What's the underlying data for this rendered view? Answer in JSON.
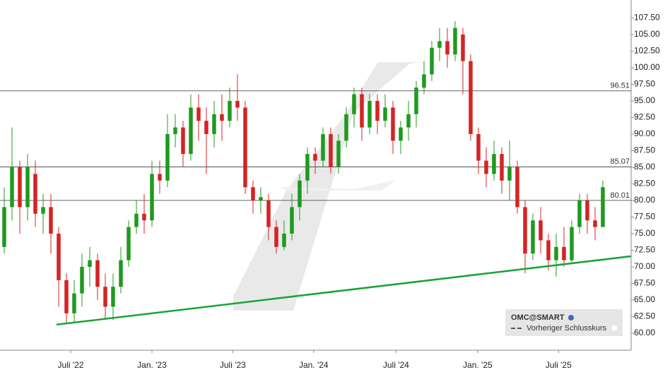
{
  "chart_data": {
    "type": "candlestick",
    "series": [
      {
        "name": "OMC@SMART",
        "up_color": "#1f9a1f",
        "down_color": "#d42424",
        "open": [
          73,
          79,
          85,
          79,
          84,
          78,
          79,
          75,
          68,
          63,
          66,
          70,
          71,
          67,
          64,
          67,
          71,
          76,
          78,
          77,
          84,
          83,
          90,
          91,
          87,
          94,
          92,
          90,
          93,
          92,
          95,
          94,
          82,
          80,
          80,
          76,
          73,
          75,
          79,
          83,
          87,
          86,
          90,
          85,
          89,
          93,
          96,
          91,
          95,
          92,
          94,
          89,
          91,
          93,
          97,
          99,
          103,
          104,
          102,
          105,
          101,
          90,
          86,
          84,
          87,
          83,
          85,
          79,
          72,
          77,
          74,
          71,
          73,
          71,
          76,
          80,
          77,
          76
        ],
        "high": [
          82,
          91,
          86,
          87,
          86,
          81,
          81,
          76,
          69,
          68,
          72,
          73,
          72,
          69,
          69,
          73,
          77,
          80,
          81,
          86,
          86,
          93,
          93,
          92,
          96,
          96,
          94,
          95,
          96,
          97,
          99,
          95,
          83,
          82,
          81,
          77,
          77,
          81,
          84,
          88,
          88,
          91,
          91,
          90,
          94,
          97,
          97,
          96,
          96,
          96,
          95,
          92,
          95,
          98,
          101,
          104,
          106,
          106,
          107,
          106,
          102,
          91,
          88,
          89,
          88,
          89,
          86,
          80,
          78,
          79,
          75,
          75,
          76,
          77,
          81,
          81,
          79,
          83
        ],
        "low": [
          72,
          77,
          75,
          77,
          76,
          75,
          72,
          64,
          61.5,
          61.7,
          64,
          67,
          65,
          62,
          62,
          66,
          70,
          75,
          75,
          76,
          81,
          82,
          88,
          85,
          86,
          89,
          84,
          88,
          89,
          91,
          92,
          81,
          78,
          78,
          74,
          72,
          72.5,
          74,
          77,
          81,
          84,
          85,
          84,
          84,
          88,
          91,
          89,
          90,
          90,
          91,
          87,
          87,
          89,
          91,
          96,
          98,
          101,
          100,
          101,
          96,
          89,
          84,
          82,
          83,
          81,
          80,
          78,
          69,
          71,
          72,
          69.5,
          68.5,
          70,
          70.5,
          75,
          75,
          74,
          76
        ],
        "close": [
          79,
          85,
          79,
          85,
          78,
          79,
          75,
          68,
          63,
          66,
          70,
          71,
          67,
          64,
          67,
          71,
          76,
          78,
          77,
          84,
          83,
          90,
          91,
          87,
          94,
          92,
          90,
          93,
          92,
          95,
          94,
          82,
          80,
          80.5,
          76,
          73,
          75,
          79,
          83,
          87,
          86,
          90,
          85,
          89,
          93,
          96,
          91,
          95,
          92,
          94,
          89,
          91,
          93,
          97,
          99,
          103,
          104,
          102,
          106,
          101,
          90,
          86,
          84,
          87,
          83,
          85,
          79,
          72,
          77,
          74,
          71,
          73,
          71,
          76,
          80,
          77,
          76,
          82
        ]
      }
    ],
    "xlim": [
      -0.545,
      80.64
    ],
    "xticks": [
      {
        "value": 8.55,
        "label": "Juli '22"
      },
      {
        "value": 19.0,
        "label": "Jan. '23"
      },
      {
        "value": 29.4,
        "label": "Juli '23"
      },
      {
        "value": 39.8,
        "label": "Jan. '24"
      },
      {
        "value": 50.4,
        "label": "Juli '24"
      },
      {
        "value": 60.9,
        "label": "Jan. '25"
      },
      {
        "value": 71.3,
        "label": "Juli '25"
      }
    ],
    "ylim": [
      57.45,
      110.2
    ],
    "yticks": [
      {
        "value": 60,
        "label": "60.00"
      },
      {
        "value": 62.5,
        "label": "62.50"
      },
      {
        "value": 65,
        "label": "65.00"
      },
      {
        "value": 67.5,
        "label": "67.50"
      },
      {
        "value": 70,
        "label": "70.00"
      },
      {
        "value": 72.5,
        "label": "72.50"
      },
      {
        "value": 75,
        "label": "75.00"
      },
      {
        "value": 77.5,
        "label": "77.50"
      },
      {
        "value": 80,
        "label": "80.00"
      },
      {
        "value": 82.5,
        "label": "82.50"
      },
      {
        "value": 85,
        "label": "85.00"
      },
      {
        "value": 87.5,
        "label": "87.50"
      },
      {
        "value": 90,
        "label": "90.00"
      },
      {
        "value": 92.5,
        "label": "92.50"
      },
      {
        "value": 95,
        "label": "95.00"
      },
      {
        "value": 97.5,
        "label": "97.50"
      },
      {
        "value": 100,
        "label": "100.00"
      },
      {
        "value": 102.5,
        "label": "102.50"
      },
      {
        "value": 105,
        "label": "105.00"
      },
      {
        "value": 107.5,
        "label": "107.50"
      }
    ],
    "hlines": [
      96.51,
      85.07,
      80.01
    ],
    "trendline": {
      "color": "#1aa33a",
      "x": [
        6.73,
        80.64
      ],
      "y": [
        61.3,
        71.6
      ]
    },
    "legend": [
      "OMC@SMART",
      "Vorheriger Schlusskurs"
    ]
  }
}
